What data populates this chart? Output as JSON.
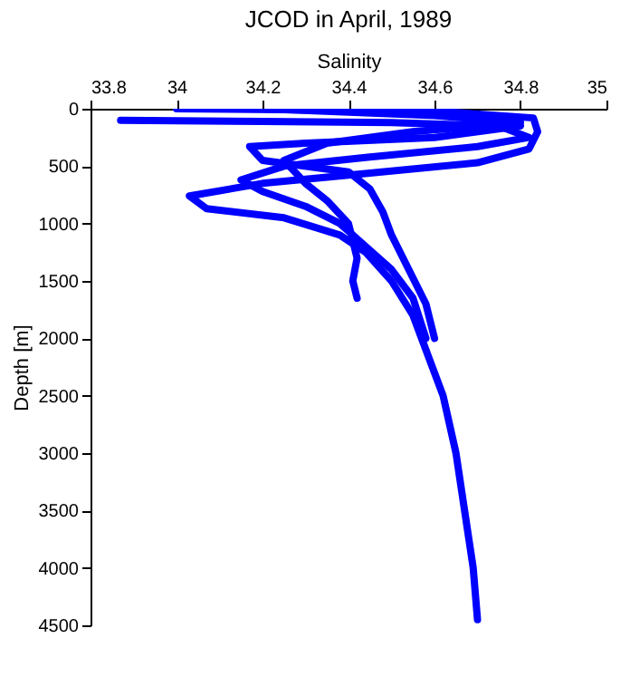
{
  "chart_data": {
    "type": "line",
    "title": "JCOD in April, 1989",
    "xlabel": "Salinity",
    "ylabel": "Depth [m]",
    "xlim": [
      33.8,
      35
    ],
    "xticks": [
      33.8,
      34,
      34.2,
      34.4,
      34.6,
      34.8,
      35
    ],
    "ylim": [
      4500,
      0
    ],
    "yticks": [
      0,
      500,
      1000,
      1500,
      2000,
      2500,
      3000,
      3500,
      4000,
      4500
    ],
    "grid": false,
    "marker": "none",
    "line_style": "solid",
    "series": [
      {
        "color": "#0000ff",
        "x": [
          34.0,
          34.6,
          34.83,
          34.84,
          34.82,
          34.7,
          34.45,
          34.2,
          34.03,
          34.07,
          34.25,
          34.38,
          34.44,
          34.5,
          34.55,
          34.58,
          34.62,
          34.65,
          34.67,
          34.69,
          34.7
        ],
        "values": [
          0,
          20,
          80,
          200,
          350,
          470,
          560,
          650,
          760,
          870,
          950,
          1100,
          1250,
          1500,
          1800,
          2100,
          2500,
          3000,
          3500,
          4000,
          4450
        ]
      },
      {
        "color": "#0000ff",
        "x": [
          33.87,
          34.2,
          34.5,
          34.75,
          34.82,
          34.7,
          34.45,
          34.25,
          34.15,
          34.2,
          34.3,
          34.38,
          34.44,
          34.5,
          34.55,
          34.58
        ],
        "values": [
          100,
          110,
          120,
          150,
          250,
          330,
          420,
          500,
          620,
          720,
          850,
          1000,
          1200,
          1400,
          1650,
          2000
        ]
      },
      {
        "color": "#0000ff",
        "x": [
          34.4,
          34.7,
          34.8,
          34.6,
          34.3,
          34.17,
          34.2,
          34.4,
          34.45,
          34.48,
          34.5,
          34.54,
          34.58,
          34.6
        ],
        "values": [
          0,
          50,
          150,
          250,
          300,
          330,
          450,
          550,
          700,
          900,
          1100,
          1400,
          1700,
          2000
        ]
      },
      {
        "color": "#0000ff",
        "x": [
          34.2,
          34.6,
          34.8,
          34.55,
          34.35,
          34.25,
          34.3,
          34.35,
          34.4,
          34.42,
          34.41,
          34.42
        ],
        "values": [
          0,
          60,
          120,
          200,
          300,
          450,
          650,
          800,
          1000,
          1300,
          1500,
          1650
        ]
      }
    ]
  }
}
